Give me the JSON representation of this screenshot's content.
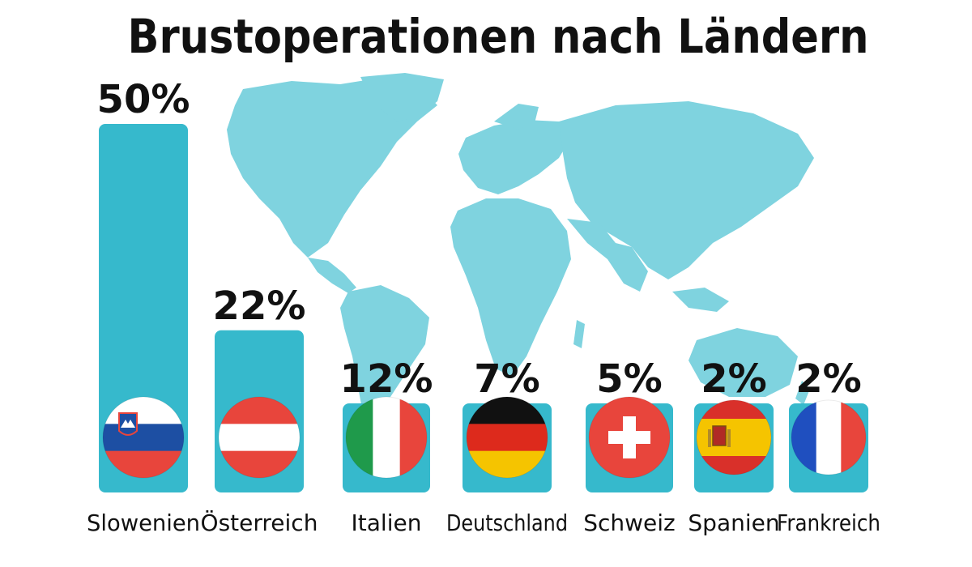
{
  "chart_data": {
    "type": "bar",
    "title": "Brustoperationen nach Ländern",
    "xlabel": "",
    "ylabel": "",
    "ylim": [
      0,
      50
    ],
    "categories": [
      "Slowenien",
      "Österreich",
      "Italien",
      "Deutschland",
      "Schweiz",
      "Spanien",
      "Frankreich"
    ],
    "values": [
      50,
      22,
      12,
      7,
      5,
      2,
      2
    ],
    "value_labels": [
      "50%",
      "22%",
      "12%",
      "7%",
      "5%",
      "2%",
      "2%"
    ],
    "flags": [
      "slovenia-flag-icon",
      "austria-flag-icon",
      "italy-flag-icon",
      "germany-flag-icon",
      "switzerland-flag-icon",
      "spain-flag-icon",
      "france-flag-icon"
    ],
    "background": "world-map-icon",
    "colors": {
      "bar": "#36b9cc",
      "map": "#7fd3df",
      "text": "#111111"
    }
  }
}
